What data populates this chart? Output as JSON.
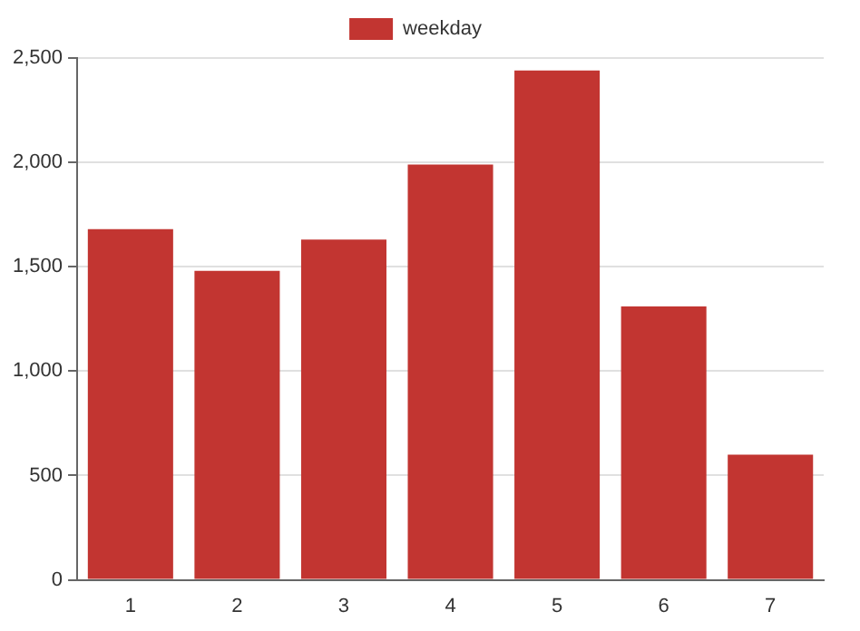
{
  "chart_data": {
    "type": "bar",
    "categories": [
      "1",
      "2",
      "3",
      "4",
      "5",
      "6",
      "7"
    ],
    "series": [
      {
        "name": "weekday",
        "color": "#c23531",
        "values": [
          1680,
          1480,
          1630,
          1990,
          2440,
          1310,
          600
        ]
      }
    ],
    "ylim": [
      0,
      2500
    ],
    "yticks": [
      0,
      500,
      {
        "value": 1000,
        "label": "1,000"
      },
      {
        "value": 1500,
        "label": "1,500"
      },
      {
        "value": 2000,
        "label": "2,000"
      },
      {
        "value": 2500,
        "label": "2,500"
      }
    ],
    "grid": "y",
    "legend": "top"
  }
}
